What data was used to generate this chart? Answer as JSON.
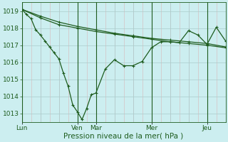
{
  "background_color": "#cceef0",
  "plot_bg_color": "#cceef0",
  "line_color": "#1e5c1e",
  "grid_color_major": "#aacccc",
  "grid_color_minor": "#d8b8b8",
  "xlabel": "Pression niveau de la mer( hPa )",
  "ylim": [
    1012.5,
    1019.5
  ],
  "yticks": [
    1013,
    1014,
    1015,
    1016,
    1017,
    1018,
    1019
  ],
  "day_labels": [
    "Lun",
    "Ven",
    "Mar",
    "Mer",
    "Jeu"
  ],
  "day_positions": [
    0,
    72,
    96,
    168,
    240
  ],
  "total_points": 264,
  "smooth_line_x": [
    0,
    24,
    48,
    72,
    96,
    120,
    144,
    168,
    192,
    216,
    240,
    264
  ],
  "smooth_line_y": [
    1019.1,
    1018.6,
    1018.2,
    1018.0,
    1017.8,
    1017.65,
    1017.5,
    1017.35,
    1017.2,
    1017.1,
    1017.0,
    1016.85
  ],
  "trend_line_x": [
    0,
    24,
    48,
    72,
    96,
    120,
    144,
    168,
    192,
    216,
    240,
    264
  ],
  "trend_line_y": [
    1019.1,
    1018.7,
    1018.35,
    1018.1,
    1017.9,
    1017.7,
    1017.55,
    1017.4,
    1017.3,
    1017.2,
    1017.1,
    1016.9
  ],
  "variable_line_x": [
    0,
    6,
    12,
    18,
    24,
    30,
    36,
    42,
    48,
    54,
    60,
    66,
    72,
    78,
    84,
    90,
    96,
    108,
    120,
    132,
    144,
    156,
    168,
    180,
    192,
    204,
    216,
    228,
    240,
    252,
    264
  ],
  "variable_line_y": [
    1019.1,
    1018.8,
    1018.55,
    1017.9,
    1017.6,
    1017.25,
    1016.9,
    1016.55,
    1016.2,
    1015.35,
    1014.6,
    1013.5,
    1013.1,
    1012.65,
    1013.3,
    1014.1,
    1014.2,
    1015.6,
    1016.15,
    1015.8,
    1015.8,
    1016.05,
    1016.85,
    1017.2,
    1017.2,
    1017.15,
    1017.85,
    1017.6,
    1017.05,
    1018.05,
    1017.25
  ],
  "marker_size": 2.5,
  "linewidth": 0.9,
  "xlabel_fontsize": 7.5,
  "tick_fontsize": 6.5,
  "figsize": [
    3.2,
    2.0
  ],
  "dpi": 100
}
